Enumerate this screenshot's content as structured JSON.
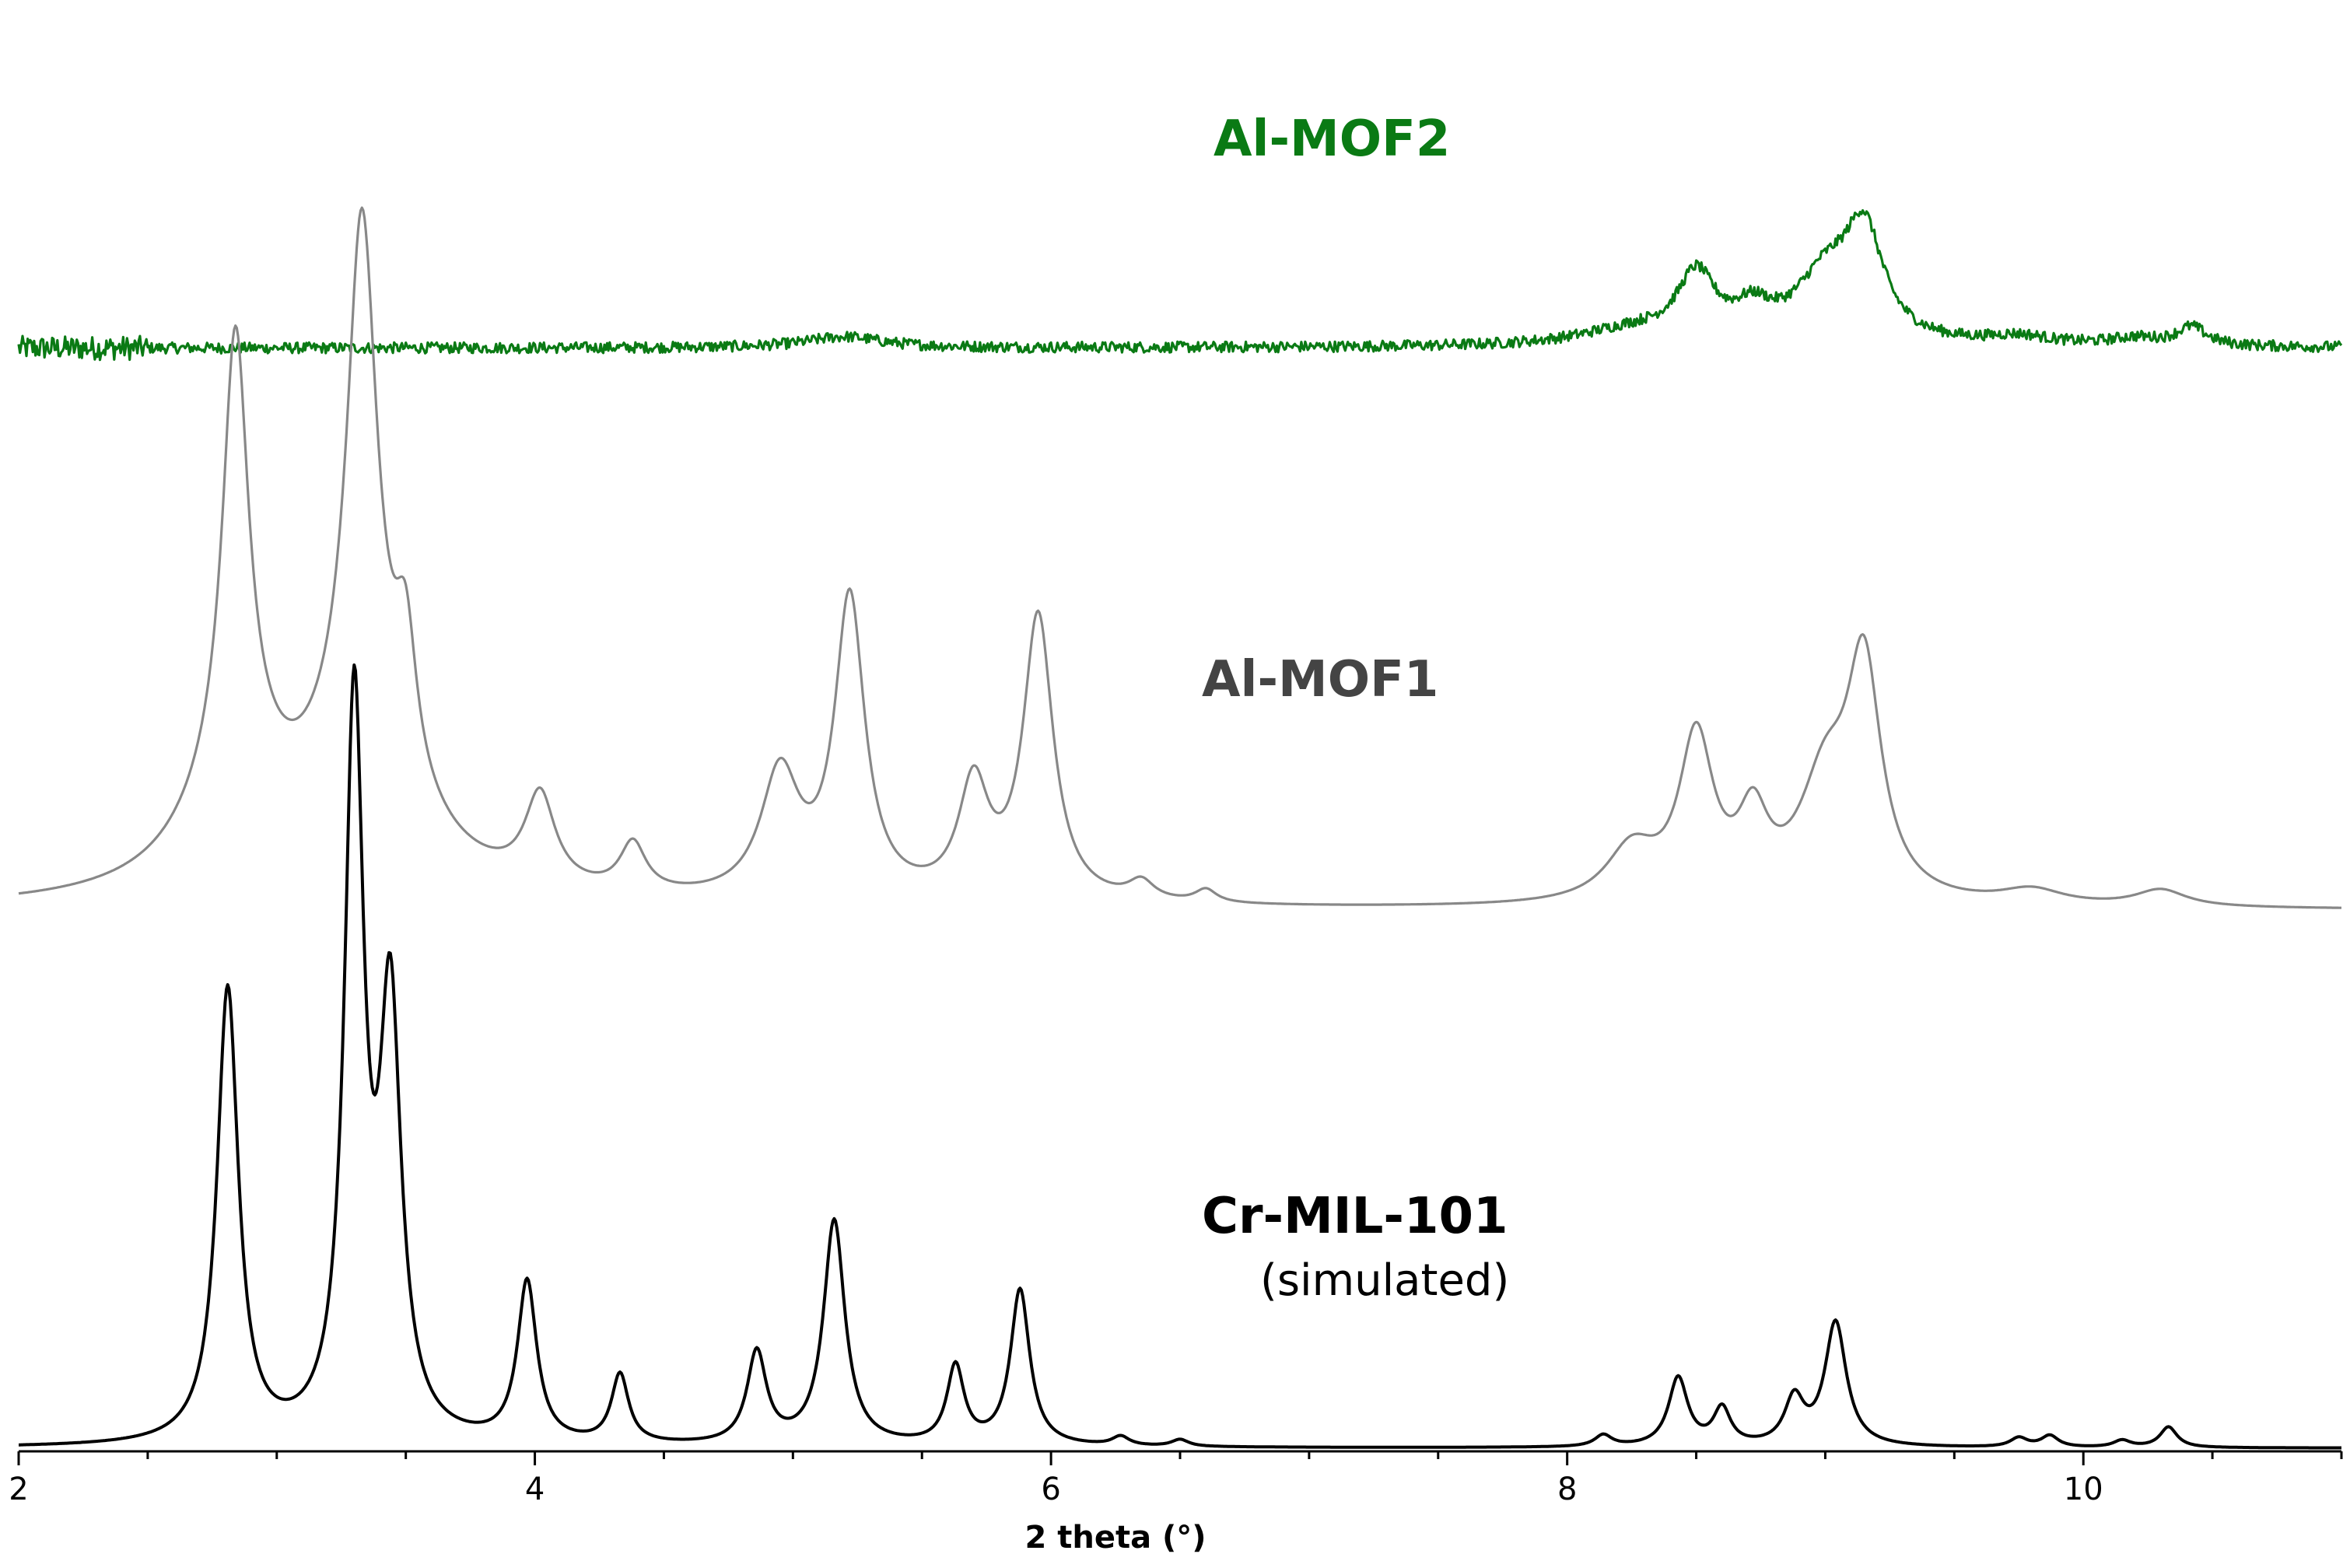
{
  "chart_data": {
    "type": "line",
    "title": "",
    "xlabel": "2 theta (°)",
    "ylabel": "",
    "xlim": [
      2,
      11
    ],
    "x_ticks": [
      2,
      4,
      6,
      8,
      10
    ],
    "x_minor_step": 0.5,
    "grid": false,
    "y_axis_visible": false,
    "series": [
      {
        "name": "Al-MOF2",
        "color": "#0a7a14",
        "noise": 0.22,
        "baseline": 0.7,
        "peaks": [
          [
            5.2,
            0.45,
            0.18
          ],
          [
            8.25,
            0.6,
            0.25
          ],
          [
            8.5,
            2.6,
            0.09
          ],
          [
            8.72,
            1.1,
            0.09
          ],
          [
            9.0,
            2.5,
            0.14
          ],
          [
            9.15,
            4.2,
            0.09
          ],
          [
            9.75,
            0.35,
            0.15
          ],
          [
            10.2,
            0.3,
            0.12
          ],
          [
            10.42,
            0.75,
            0.07
          ]
        ],
        "points": [
          [
            2,
            0.7
          ],
          [
            2.5,
            0.7
          ],
          [
            3.0,
            0.7
          ],
          [
            3.5,
            0.7
          ],
          [
            4.0,
            0.7
          ],
          [
            4.5,
            0.7
          ],
          [
            5.0,
            0.85
          ],
          [
            5.2,
            1.15
          ],
          [
            5.5,
            0.85
          ],
          [
            6.0,
            0.75
          ],
          [
            6.5,
            0.7
          ],
          [
            7.0,
            0.7
          ],
          [
            7.5,
            0.72
          ],
          [
            8.0,
            0.95
          ],
          [
            8.3,
            1.5
          ],
          [
            8.5,
            3.4
          ],
          [
            8.72,
            2.3
          ],
          [
            9.0,
            3.8
          ],
          [
            9.15,
            5.0
          ],
          [
            9.4,
            1.6
          ],
          [
            9.75,
            1.05
          ],
          [
            10.2,
            1.0
          ],
          [
            10.42,
            1.45
          ],
          [
            10.7,
            0.75
          ],
          [
            11,
            0.7
          ]
        ]
      },
      {
        "name": "Al-MOF1",
        "color": "#888888",
        "noise": 0.0,
        "baseline": 0.1,
        "peaks": [
          [
            2.84,
            11.5,
            0.06
          ],
          [
            2.84,
            3.0,
            0.22
          ],
          [
            3.33,
            13.8,
            0.07
          ],
          [
            3.33,
            4.0,
            0.25
          ],
          [
            3.5,
            3.5,
            0.05
          ],
          [
            4.02,
            2.4,
            0.07
          ],
          [
            4.38,
            1.3,
            0.06
          ],
          [
            4.95,
            3.3,
            0.09
          ],
          [
            5.22,
            8.0,
            0.07
          ],
          [
            5.7,
            3.0,
            0.07
          ],
          [
            5.95,
            7.6,
            0.07
          ],
          [
            6.35,
            0.5,
            0.06
          ],
          [
            6.6,
            0.35,
            0.05
          ],
          [
            8.25,
            1.4,
            0.12
          ],
          [
            8.5,
            4.3,
            0.08
          ],
          [
            8.72,
            2.0,
            0.07
          ],
          [
            9.0,
            3.0,
            0.12
          ],
          [
            9.15,
            6.0,
            0.08
          ],
          [
            9.8,
            0.4,
            0.15
          ],
          [
            10.3,
            0.45,
            0.12
          ]
        ],
        "points": [
          [
            2,
            0.1
          ],
          [
            2.84,
            11.5
          ],
          [
            2.97,
            5.4
          ],
          [
            3.33,
            13.8
          ],
          [
            3.5,
            7.0
          ],
          [
            3.75,
            1.3
          ],
          [
            4.02,
            2.6
          ],
          [
            4.2,
            1.0
          ],
          [
            4.38,
            1.5
          ],
          [
            4.6,
            0.9
          ],
          [
            4.95,
            3.5
          ],
          [
            5.22,
            8.3
          ],
          [
            5.5,
            1.6
          ],
          [
            5.7,
            3.2
          ],
          [
            5.95,
            7.9
          ],
          [
            6.2,
            0.6
          ],
          [
            6.6,
            0.35
          ],
          [
            7.0,
            0.1
          ],
          [
            7.5,
            0.15
          ],
          [
            8.0,
            0.6
          ],
          [
            8.5,
            4.4
          ],
          [
            8.72,
            2.3
          ],
          [
            9.15,
            6.2
          ],
          [
            9.5,
            0.9
          ],
          [
            10.0,
            0.5
          ],
          [
            10.5,
            0.3
          ],
          [
            11,
            0.1
          ]
        ]
      },
      {
        "name": "Cr-MIL-101",
        "sublabel": "(simulated)",
        "color": "#000000",
        "noise": 0.0,
        "baseline": 0.0,
        "peaks": [
          [
            2.81,
            9.9,
            0.05
          ],
          [
            3.3,
            15.9,
            0.045
          ],
          [
            3.44,
            9.2,
            0.05
          ],
          [
            3.97,
            3.5,
            0.045
          ],
          [
            4.33,
            1.5,
            0.04
          ],
          [
            4.86,
            2.0,
            0.045
          ],
          [
            5.16,
            4.9,
            0.05
          ],
          [
            5.63,
            1.7,
            0.04
          ],
          [
            5.88,
            3.4,
            0.045
          ],
          [
            6.27,
            0.2,
            0.04
          ],
          [
            6.5,
            0.15,
            0.04
          ],
          [
            8.14,
            0.25,
            0.04
          ],
          [
            8.43,
            1.5,
            0.045
          ],
          [
            8.6,
            0.8,
            0.04
          ],
          [
            8.88,
            1.0,
            0.045
          ],
          [
            9.04,
            2.7,
            0.05
          ],
          [
            9.75,
            0.2,
            0.04
          ],
          [
            9.87,
            0.25,
            0.04
          ],
          [
            10.15,
            0.15,
            0.04
          ],
          [
            10.33,
            0.45,
            0.04
          ]
        ]
      }
    ]
  }
}
